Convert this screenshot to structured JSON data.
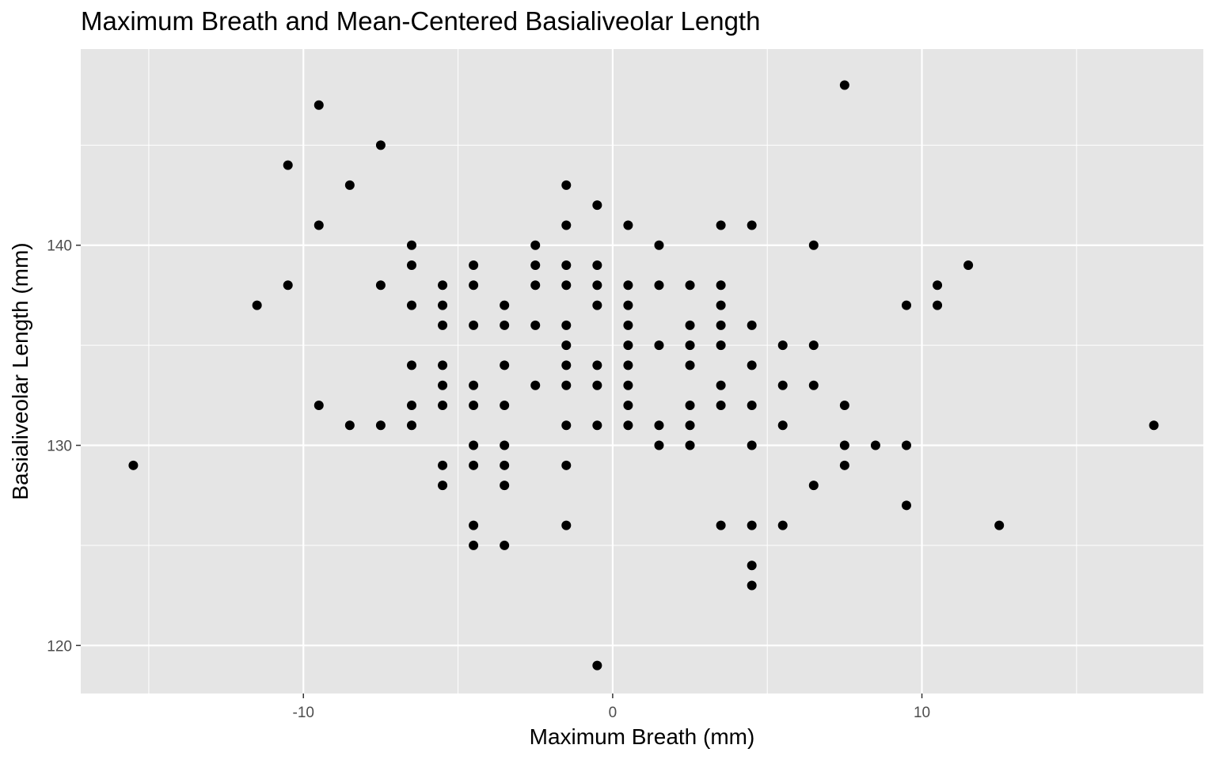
{
  "chart_data": {
    "type": "scatter",
    "title": "Maximum Breath and Mean-Centered Basialiveolar Length",
    "xlabel": "Maximum Breath (mm)",
    "ylabel": "Basialiveolar Length (mm)",
    "xlim": [
      -17.2,
      19.1
    ],
    "ylim": [
      117.6,
      149.8
    ],
    "x_ticks": [
      -10,
      0,
      10
    ],
    "x_tick_labels": [
      "-10",
      "0",
      "10"
    ],
    "y_ticks": [
      120,
      130,
      140
    ],
    "y_tick_labels": [
      "120",
      "130",
      "140"
    ],
    "grid": true,
    "legend": "none",
    "panel_background": "#e5e5e5",
    "grid_color": "#ffffff",
    "point_color": "#000000",
    "points": [
      [
        -15.5,
        129
      ],
      [
        -11.5,
        137
      ],
      [
        -10.5,
        144
      ],
      [
        -10.5,
        138
      ],
      [
        -9.5,
        147
      ],
      [
        -9.5,
        141
      ],
      [
        -9.5,
        132
      ],
      [
        -8.5,
        143
      ],
      [
        -8.5,
        131
      ],
      [
        -7.5,
        145
      ],
      [
        -7.5,
        138
      ],
      [
        -7.5,
        131
      ],
      [
        -6.5,
        140
      ],
      [
        -6.5,
        139
      ],
      [
        -6.5,
        137
      ],
      [
        -6.5,
        134
      ],
      [
        -6.5,
        132
      ],
      [
        -6.5,
        131
      ],
      [
        -5.5,
        138
      ],
      [
        -5.5,
        137
      ],
      [
        -5.5,
        136
      ],
      [
        -5.5,
        134
      ],
      [
        -5.5,
        133
      ],
      [
        -5.5,
        132
      ],
      [
        -5.5,
        129
      ],
      [
        -5.5,
        128
      ],
      [
        -4.5,
        139
      ],
      [
        -4.5,
        138
      ],
      [
        -4.5,
        136
      ],
      [
        -4.5,
        133
      ],
      [
        -4.5,
        132
      ],
      [
        -4.5,
        130
      ],
      [
        -4.5,
        129
      ],
      [
        -4.5,
        126
      ],
      [
        -4.5,
        125
      ],
      [
        -3.5,
        137
      ],
      [
        -3.5,
        136
      ],
      [
        -3.5,
        134
      ],
      [
        -3.5,
        132
      ],
      [
        -3.5,
        130
      ],
      [
        -3.5,
        129
      ],
      [
        -3.5,
        128
      ],
      [
        -3.5,
        125
      ],
      [
        -2.5,
        140
      ],
      [
        -2.5,
        139
      ],
      [
        -2.5,
        138
      ],
      [
        -2.5,
        136
      ],
      [
        -2.5,
        133
      ],
      [
        -1.5,
        143
      ],
      [
        -1.5,
        141
      ],
      [
        -1.5,
        139
      ],
      [
        -1.5,
        138
      ],
      [
        -1.5,
        136
      ],
      [
        -1.5,
        135
      ],
      [
        -1.5,
        134
      ],
      [
        -1.5,
        133
      ],
      [
        -1.5,
        131
      ],
      [
        -1.5,
        129
      ],
      [
        -1.5,
        126
      ],
      [
        -0.5,
        142
      ],
      [
        -0.5,
        139
      ],
      [
        -0.5,
        138
      ],
      [
        -0.5,
        137
      ],
      [
        -0.5,
        134
      ],
      [
        -0.5,
        133
      ],
      [
        -0.5,
        131
      ],
      [
        -0.5,
        119
      ],
      [
        0.5,
        141
      ],
      [
        0.5,
        138
      ],
      [
        0.5,
        137
      ],
      [
        0.5,
        136
      ],
      [
        0.5,
        135
      ],
      [
        0.5,
        134
      ],
      [
        0.5,
        133
      ],
      [
        0.5,
        132
      ],
      [
        0.5,
        131
      ],
      [
        1.5,
        140
      ],
      [
        1.5,
        138
      ],
      [
        1.5,
        135
      ],
      [
        1.5,
        131
      ],
      [
        1.5,
        130
      ],
      [
        2.5,
        138
      ],
      [
        2.5,
        136
      ],
      [
        2.5,
        135
      ],
      [
        2.5,
        134
      ],
      [
        2.5,
        132
      ],
      [
        2.5,
        131
      ],
      [
        2.5,
        130
      ],
      [
        3.5,
        141
      ],
      [
        3.5,
        138
      ],
      [
        3.5,
        137
      ],
      [
        3.5,
        136
      ],
      [
        3.5,
        135
      ],
      [
        3.5,
        133
      ],
      [
        3.5,
        132
      ],
      [
        3.5,
        126
      ],
      [
        4.5,
        141
      ],
      [
        4.5,
        136
      ],
      [
        4.5,
        134
      ],
      [
        4.5,
        132
      ],
      [
        4.5,
        130
      ],
      [
        4.5,
        126
      ],
      [
        4.5,
        124
      ],
      [
        4.5,
        123
      ],
      [
        5.5,
        135
      ],
      [
        5.5,
        133
      ],
      [
        5.5,
        131
      ],
      [
        5.5,
        126
      ],
      [
        6.5,
        140
      ],
      [
        6.5,
        135
      ],
      [
        6.5,
        133
      ],
      [
        6.5,
        128
      ],
      [
        7.5,
        148
      ],
      [
        7.5,
        132
      ],
      [
        7.5,
        130
      ],
      [
        7.5,
        129
      ],
      [
        8.5,
        130
      ],
      [
        9.5,
        137
      ],
      [
        9.5,
        130
      ],
      [
        9.5,
        127
      ],
      [
        10.5,
        138
      ],
      [
        10.5,
        137
      ],
      [
        11.5,
        139
      ],
      [
        12.5,
        126
      ],
      [
        17.5,
        131
      ]
    ]
  }
}
